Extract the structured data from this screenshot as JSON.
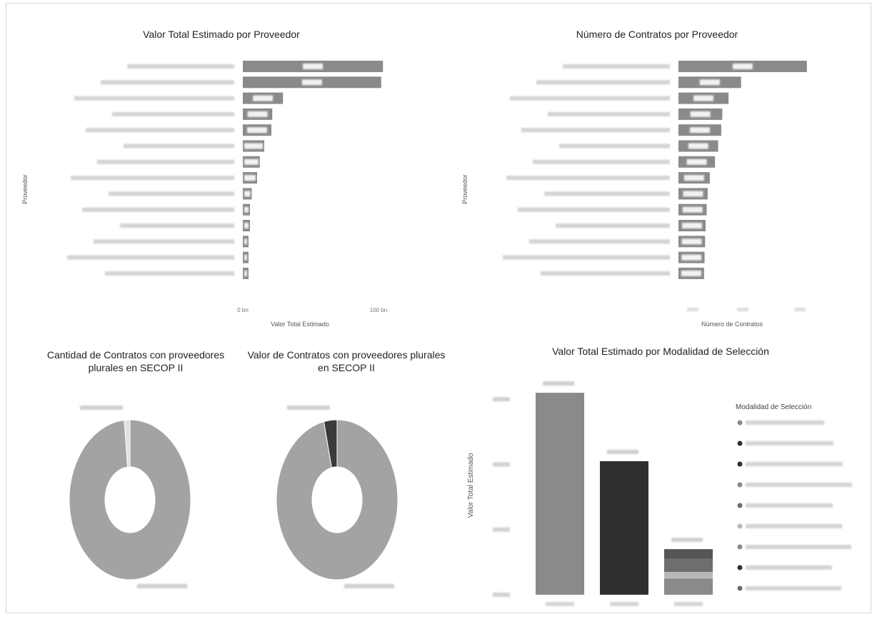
{
  "colors": {
    "bar": "#8a8a8a",
    "bar_dark": "#2f2f2f",
    "bar_mid": "#6e6e6e",
    "bar_light": "#b8b8b8",
    "donut": "#a3a3a3",
    "donut_dark": "#3a3a3a",
    "axis_text": "#555555"
  },
  "chart_data": [
    {
      "id": "valor-total-proveedor",
      "type": "bar",
      "orientation": "horizontal",
      "title": "Valor Total Estimado por Proveedor",
      "xlabel": "Valor Total Estimado",
      "ylabel": "Proveedor",
      "xticks": [
        "0 bn",
        "100 bn"
      ],
      "categories": [
        "",
        "",
        "",
        "",
        "",
        "",
        "",
        "",
        "",
        "",
        "",
        "",
        "",
        ""
      ],
      "values": [
        157,
        155,
        45,
        33,
        32,
        24,
        19,
        16,
        10,
        8,
        8,
        6,
        5,
        4
      ],
      "xlim": [
        0,
        160
      ]
    },
    {
      "id": "numero-contratos-proveedor",
      "type": "bar",
      "orientation": "horizontal",
      "title": "Número de Contratos por Proveedor",
      "xlabel": "Número de Contratos",
      "ylabel": "Proveedor",
      "categories": [
        "",
        "",
        "",
        "",
        "",
        "",
        "",
        "",
        "",
        "",
        "",
        "",
        "",
        ""
      ],
      "values": [
        1230,
        600,
        480,
        420,
        410,
        380,
        350,
        300,
        280,
        270,
        260,
        255,
        250,
        245
      ],
      "xlim": [
        0,
        1300
      ]
    },
    {
      "id": "cantidad-contratos-plurales",
      "type": "pie",
      "title": "Cantidad de Contratos con proveedores plurales en SECOP II",
      "slices": [
        {
          "value": 0.985,
          "color": "#a3a3a3"
        },
        {
          "value": 0.015,
          "color": "#e0e0e0"
        }
      ]
    },
    {
      "id": "valor-contratos-plurales",
      "type": "pie",
      "title": "Valor de Contratos con proveedores plurales en SECOP II",
      "slices": [
        {
          "value": 0.965,
          "color": "#a3a3a3"
        },
        {
          "value": 0.035,
          "color": "#3a3a3a"
        }
      ]
    },
    {
      "id": "valor-modalidad-seleccion",
      "type": "bar",
      "title": "Valor Total Estimado por Modalidad de Selección",
      "ylabel": "Valor Total Estimado",
      "legend_title": "Modalidad de Selección",
      "legend_placement": "right",
      "legend_count": 9,
      "ylim": [
        0,
        3.2
      ],
      "stacks": [
        {
          "segments": [
            {
              "value": 3.1,
              "color": "#8a8a8a"
            }
          ]
        },
        {
          "segments": [
            {
              "value": 2.05,
              "color": "#2f2f2f"
            }
          ]
        },
        {
          "segments": [
            {
              "value": 0.25,
              "color": "#8a8a8a"
            },
            {
              "value": 0.1,
              "color": "#b8b8b8"
            },
            {
              "value": 0.2,
              "color": "#6e6e6e"
            },
            {
              "value": 0.15,
              "color": "#555555"
            }
          ]
        }
      ]
    }
  ]
}
